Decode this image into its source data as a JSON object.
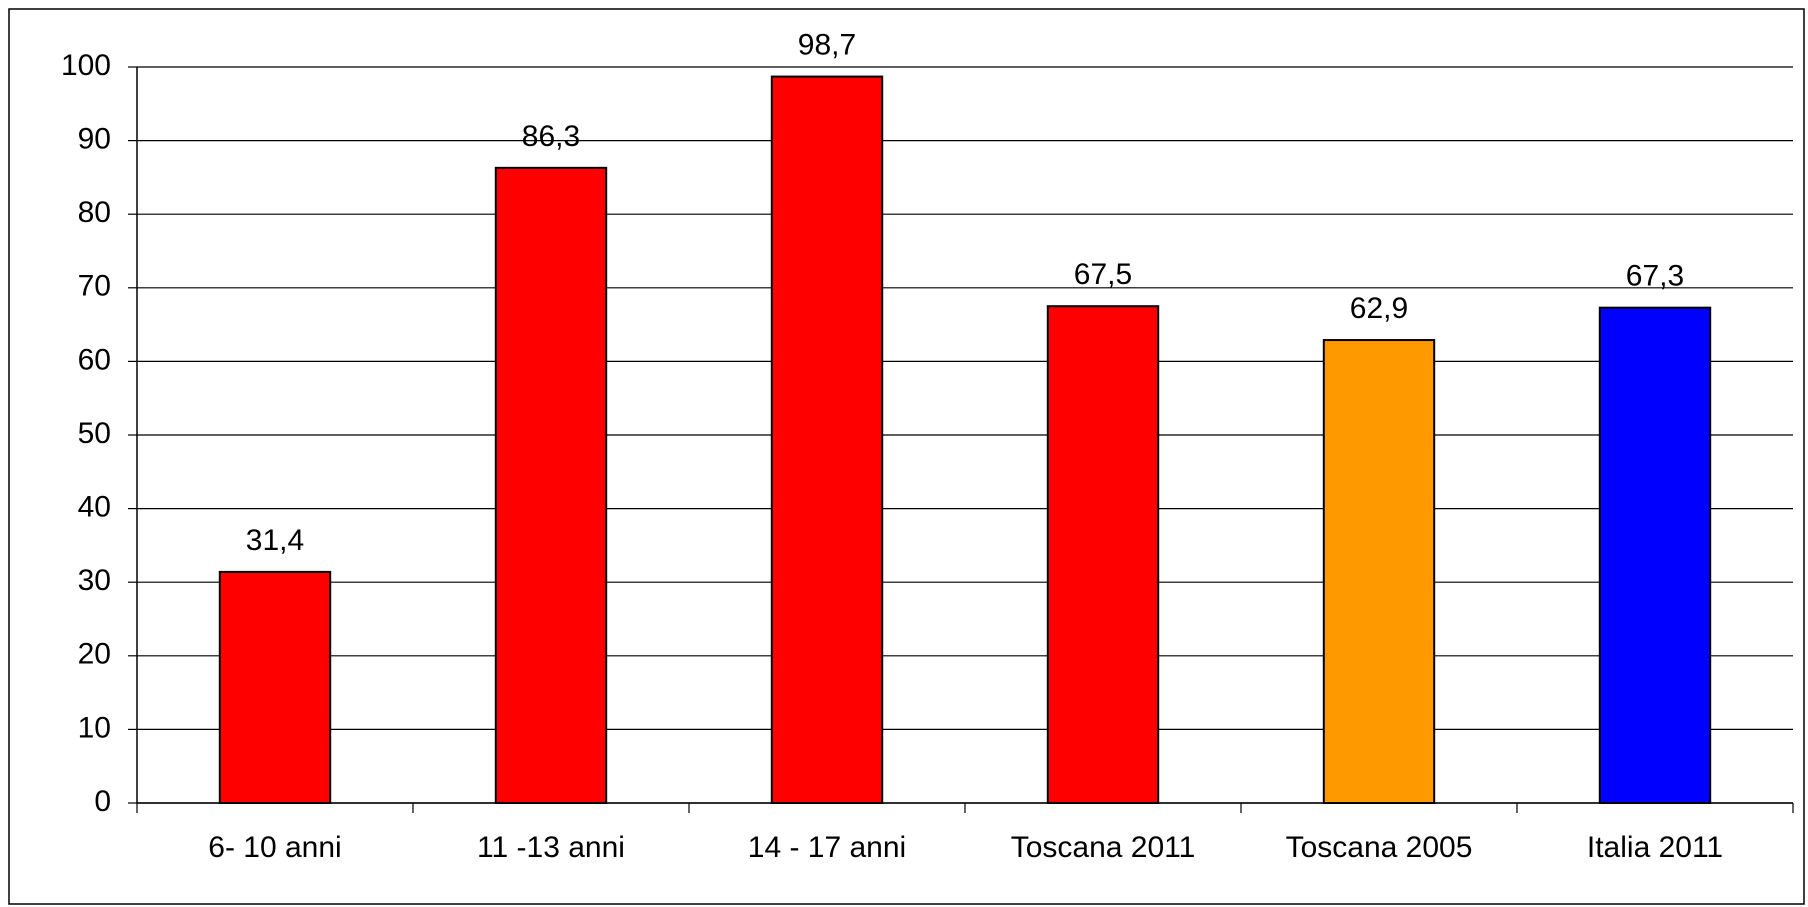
{
  "chart_data": {
    "type": "bar",
    "categories": [
      "6- 10 anni",
      "11 -13 anni",
      "14 - 17 anni",
      "Toscana 2011",
      "Toscana 2005",
      "Italia 2011"
    ],
    "values": [
      31.4,
      86.3,
      98.7,
      67.5,
      62.9,
      67.3
    ],
    "value_labels": [
      "31,4",
      "86,3",
      "98,7",
      "67,5",
      "62,9",
      "67,3"
    ],
    "colors": [
      "#ff0000",
      "#ff0000",
      "#ff0000",
      "#ff0000",
      "#ff9900",
      "#0000ff"
    ],
    "ylim": [
      0,
      100
    ],
    "yticks": [
      0,
      10,
      20,
      30,
      40,
      50,
      60,
      70,
      80,
      90,
      100
    ],
    "grid": true
  }
}
